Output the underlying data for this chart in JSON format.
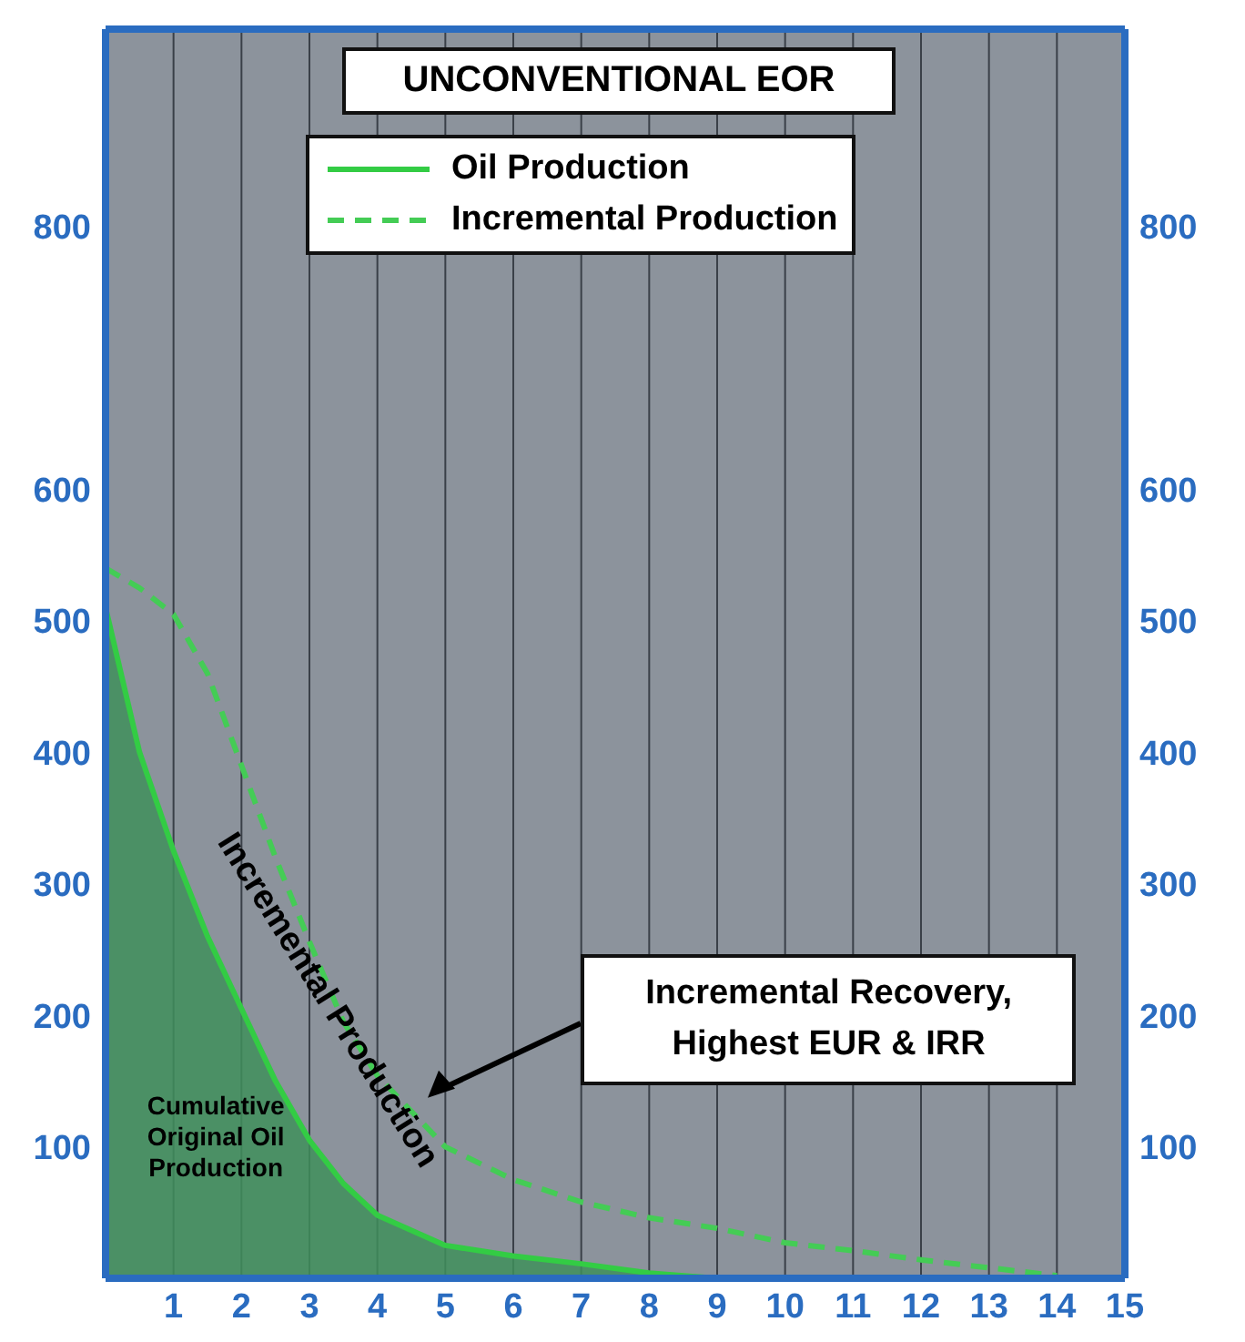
{
  "chart_data": {
    "type": "line",
    "title": "UNCONVENTIONAL EOR",
    "x": [
      0,
      0.5,
      1,
      1.5,
      2,
      2.5,
      3,
      3.5,
      4,
      5,
      6,
      7,
      8,
      9,
      10,
      11,
      12,
      13,
      14
    ],
    "series": [
      {
        "name": "Oil Production",
        "type": "area",
        "color": "#33cc44",
        "values": [
          510,
          400,
          325,
          260,
          205,
          150,
          105,
          72,
          48,
          25,
          17,
          11,
          4,
          0,
          null,
          null,
          null,
          null,
          null
        ]
      },
      {
        "name": "Incremental Production",
        "line_style": "dashed",
        "color": "#44cc55",
        "values": [
          540,
          525,
          505,
          460,
          390,
          320,
          256,
          195,
          154,
          100,
          75,
          58,
          46,
          38,
          27,
          21,
          14,
          8,
          2
        ]
      }
    ],
    "xlim": [
      0,
      15
    ],
    "xticks": [
      1,
      2,
      3,
      4,
      5,
      6,
      7,
      8,
      9,
      10,
      11,
      12,
      13,
      14,
      15
    ],
    "ylim": [
      0,
      950
    ],
    "yticks": [
      100,
      200,
      300,
      400,
      500,
      600,
      800
    ],
    "y2lim": [
      0,
      950
    ],
    "y2ticks": [
      100,
      200,
      300,
      400,
      500,
      600,
      800
    ],
    "grid": "x",
    "legend": "top",
    "annotations": [
      "Incremental Production",
      "Cumulative Original Oil Production",
      "Incremental Recovery, Highest EUR & IRR"
    ]
  }
}
